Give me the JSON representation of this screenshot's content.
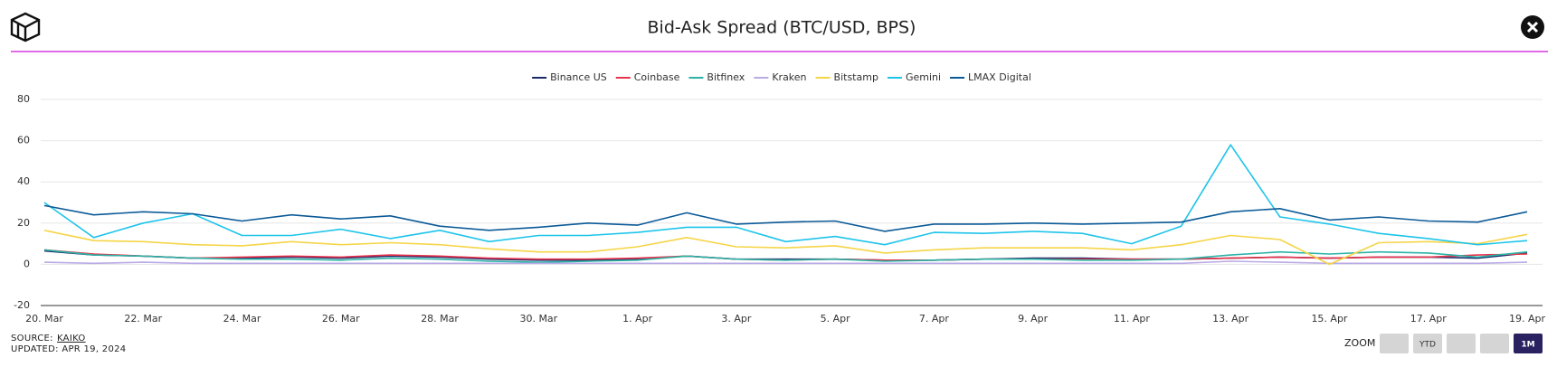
{
  "chart_data": {
    "type": "line",
    "title": "Bid-Ask Spread (BTC/USD, BPS)",
    "categories": [
      "20. Mar",
      null,
      "22. Mar",
      null,
      "24. Mar",
      null,
      "26. Mar",
      null,
      "28. Mar",
      null,
      "30. Mar",
      null,
      "1. Apr",
      null,
      "3. Apr",
      null,
      "5. Apr",
      null,
      "7. Apr",
      null,
      "9. Apr",
      null,
      "11. Apr",
      null,
      "13. Apr",
      null,
      "15. Apr",
      null,
      "17. Apr",
      null,
      "19. Apr"
    ],
    "series": [
      {
        "name": "Binance US",
        "color": "#1b2a6b",
        "values": [
          6.5,
          4.5,
          4,
          3,
          3,
          3.5,
          3,
          4,
          3.5,
          2.5,
          2,
          2,
          2.5,
          4,
          2.5,
          2.5,
          2.5,
          2,
          2,
          2.5,
          3,
          3,
          2.5,
          2.5,
          3,
          3.5,
          3,
          3.5,
          3.5,
          3,
          5.5
        ]
      },
      {
        "name": "Coinbase",
        "color": "#e8334a",
        "values": [
          7,
          5,
          4,
          3,
          3.5,
          4,
          3.5,
          4.5,
          4,
          3,
          2.5,
          2.5,
          3,
          4,
          2.5,
          2,
          2.5,
          2,
          2,
          2.5,
          2.5,
          2.5,
          2.5,
          2.5,
          3,
          3.5,
          3,
          3.5,
          3.5,
          4.5,
          5
        ]
      },
      {
        "name": "Bitfinex",
        "color": "#2bb3a6",
        "values": [
          7,
          4.5,
          4,
          3,
          2.5,
          2.5,
          2,
          3,
          2.5,
          1.5,
          1,
          1.5,
          2,
          4,
          2.5,
          2,
          2.5,
          1.5,
          2,
          2.5,
          2.5,
          2,
          2,
          2.5,
          4.5,
          6,
          5,
          6,
          5.5,
          3.5,
          6
        ]
      },
      {
        "name": "Kraken",
        "color": "#b9abe6",
        "values": [
          1,
          0.5,
          1,
          0.5,
          0.5,
          0.5,
          0.5,
          0.5,
          0.5,
          0.5,
          0.5,
          0.5,
          0.5,
          0.5,
          0.5,
          0.5,
          0.5,
          0.5,
          0.5,
          0.5,
          0.5,
          0.5,
          0.5,
          0.5,
          1.5,
          1,
          0.5,
          0.5,
          0.5,
          0.5,
          1
        ]
      },
      {
        "name": "Bitstamp",
        "color": "#f5d547",
        "values": [
          16.5,
          11.5,
          11,
          9.5,
          9,
          11,
          9.5,
          10.5,
          9.5,
          7.5,
          6,
          6,
          8.5,
          13,
          8.5,
          8,
          9,
          5.5,
          7,
          8,
          8,
          8,
          7,
          9.5,
          14,
          12,
          0,
          10.5,
          11,
          10,
          14.5
        ]
      },
      {
        "name": "Gemini",
        "color": "#1ec4ea",
        "values": [
          30,
          13,
          20,
          24.5,
          14,
          14,
          17,
          12.5,
          16.5,
          11,
          14,
          14,
          15.5,
          18,
          18,
          11,
          13.5,
          9.5,
          15.5,
          15,
          16,
          15,
          10,
          18.5,
          58,
          23,
          19.5,
          15,
          12.5,
          9.5,
          11.5
        ]
      },
      {
        "name": "LMAX Digital",
        "color": "#0b5a97",
        "values": [
          28.5,
          24,
          25.5,
          24.5,
          21,
          24,
          22,
          23.5,
          18.5,
          16.5,
          18,
          20,
          19,
          25,
          19.5,
          20.5,
          21,
          16,
          19.5,
          19.5,
          20,
          19.5,
          20,
          20.5,
          25.5,
          27,
          21.5,
          23,
          21,
          20.5,
          25.5
        ]
      }
    ],
    "ylim": [
      -20,
      80
    ],
    "yticks": [
      -20,
      0,
      20,
      40,
      60,
      80
    ],
    "grid": true,
    "legend": "top",
    "source_label": "SOURCE:",
    "source": "KAIKO",
    "updated": "UPDATED: APR 19, 2024",
    "zoom": {
      "label": "ZOOM",
      "ytd": "YTD",
      "month": "1M"
    }
  }
}
